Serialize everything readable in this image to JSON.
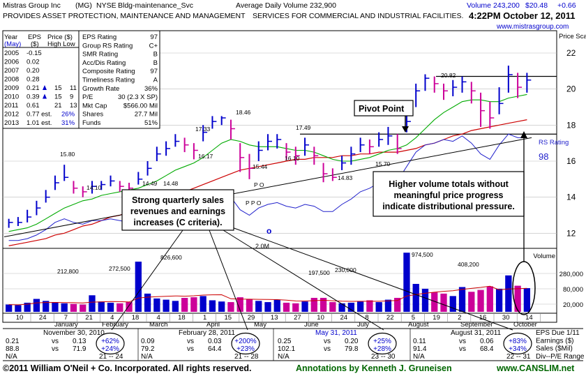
{
  "header": {
    "company": "Mistras Group Inc",
    "ticker": "(MG)",
    "exchange": "NYSE",
    "industry": "Bldg-maintenance_Svc",
    "avg_volume_label": "Average Daily Volume 232,900",
    "description": "PROVIDES ASSET PROTECTION, MAINTENANCE AND MANAGEMENT",
    "description2": "SERVICES FOR COMMERCIAL AND INDUSTRIAL FACILITIES.",
    "volume_quote": "Volume 243,200",
    "price_quote": "$20.48",
    "change": "+0.66",
    "timestamp": "4:22PM October 12, 2011",
    "website": "www.mistrasgroup.com"
  },
  "eps_table": {
    "headers": [
      "Year",
      "EPS",
      "Price ($)"
    ],
    "subheaders": [
      "(May)",
      "($)",
      "High Low"
    ],
    "rows": [
      {
        "year": "2005",
        "eps": "-0.15",
        "high": "",
        "low": "",
        "arrow": false
      },
      {
        "year": "2006",
        "eps": "0.02",
        "high": "",
        "low": "",
        "arrow": false
      },
      {
        "year": "2007",
        "eps": "0.20",
        "high": "",
        "low": "",
        "arrow": false
      },
      {
        "year": "2008",
        "eps": "0.28",
        "high": "",
        "low": "",
        "arrow": false
      },
      {
        "year": "2009",
        "eps": "0.21",
        "high": "15",
        "low": "11",
        "arrow": true
      },
      {
        "year": "2010",
        "eps": "0.39",
        "high": "15",
        "low": "9",
        "arrow": true
      },
      {
        "year": "2011",
        "eps": "0.61",
        "high": "21",
        "low": "13",
        "arrow": false
      },
      {
        "year": "2012",
        "eps": "0.77 est.",
        "high": "26%",
        "low": "",
        "arrow": false
      },
      {
        "year": "2013",
        "eps": "1.01 est.",
        "high": "31%",
        "low": "",
        "arrow": false
      }
    ]
  },
  "ratings": [
    {
      "label": "EPS Rating",
      "value": "97"
    },
    {
      "label": "Group RS Rating",
      "value": "C+"
    },
    {
      "label": "SMR Rating",
      "value": "B"
    },
    {
      "label": "Acc/Dis Rating",
      "value": "B"
    },
    {
      "label": "Composite Rating",
      "value": "97"
    },
    {
      "label": "Timeliness Rating",
      "value": "A"
    },
    {
      "label": "Growth Rate",
      "value": "36%"
    },
    {
      "label": "P/E",
      "value": "30 (2.3 X SP)"
    },
    {
      "label": "Mkt Cap",
      "value": "$566.00 Mil"
    },
    {
      "label": "Shares",
      "value": "27.7 Mil"
    },
    {
      "label": "Funds",
      "value": "51%"
    }
  ],
  "annotations": {
    "pivot": "Pivot Point",
    "volume_note": [
      "Higher volume totals without",
      "meaningful price progress",
      "indicate distributional pressure."
    ],
    "sales_note": [
      "Strong quarterly sales",
      "revenues and earnings",
      "increases (C criteria)."
    ],
    "rs_label": "RS Rating",
    "rs_value": "98",
    "price_scale": "Price Scale",
    "volume_label": "Volume",
    "o_marker": "o",
    "po_marker": "P O",
    "ppo_marker": "P P O",
    "vol_2m": "2.0M"
  },
  "chart_data": {
    "type": "line",
    "title": "",
    "price_axis": {
      "ticks": [
        12,
        14,
        16,
        18,
        20,
        22
      ],
      "ylim": [
        11.2,
        23.2
      ]
    },
    "volume_axis": {
      "ticks": [
        "280,000",
        "80,000",
        "20,000"
      ]
    },
    "week_labels": [
      "10",
      "24",
      "7",
      "21",
      "4",
      "18",
      "4",
      "18",
      "1",
      "15",
      "29",
      "13",
      "27",
      "10",
      "24",
      "8",
      "22",
      "5",
      "19",
      "2",
      "16",
      "30",
      "14"
    ],
    "month_labels": [
      "January",
      "February",
      "March",
      "April",
      "May",
      "June",
      "July",
      "August",
      "September",
      "October"
    ],
    "price_labels": [
      "15.80",
      "14.10",
      "14.49",
      "14.48",
      "17.33",
      "16.17",
      "18.46",
      "15.44",
      "17.49",
      "16.10",
      "14.83",
      "15.70",
      "20.82"
    ],
    "volume_labels": [
      "212,800",
      "272,500",
      "826,600",
      "197,500",
      "230,000",
      "974,500",
      "408,200"
    ],
    "pivot_price": 17.5,
    "base_top_price": 20.82,
    "rs_rating": 98,
    "weeks": 57,
    "close": [
      12.6,
      12.6,
      12.9,
      13.4,
      14.0,
      14.8,
      15.1,
      14.5,
      14.3,
      14.6,
      14.7,
      14.9,
      14.6,
      14.5,
      15.0,
      15.6,
      16.4,
      16.7,
      17.1,
      16.9,
      16.6,
      17.6,
      18.2,
      18.4,
      17.8,
      16.2,
      15.6,
      16.6,
      17.1,
      17.2,
      16.5,
      16.3,
      16.9,
      16.3,
      15.3,
      15.1,
      15.9,
      16.4,
      16.9,
      16.8,
      17.2,
      17.4,
      16.7,
      18.2,
      19.9,
      20.6,
      20.3,
      19.9,
      20.1,
      20.4,
      19.9,
      18.8,
      18.4,
      19.2,
      20.8,
      20.1,
      20.5
    ],
    "high": [
      12.8,
      12.9,
      13.3,
      13.8,
      14.4,
      15.2,
      15.8,
      14.9,
      14.6,
      14.9,
      14.9,
      15.2,
      14.9,
      14.8,
      15.4,
      16.0,
      16.8,
      17.1,
      17.5,
      17.3,
      17.0,
      18.0,
      18.5,
      18.5,
      18.3,
      17.0,
      16.4,
      17.1,
      17.5,
      17.5,
      17.0,
      16.8,
      17.3,
      16.8,
      15.9,
      15.6,
      16.3,
      16.8,
      17.3,
      17.2,
      17.6,
      17.9,
      17.5,
      18.8,
      20.3,
      20.82,
      20.7,
      20.3,
      20.5,
      20.7,
      20.4,
      19.8,
      19.3,
      20.1,
      21.3,
      20.9,
      20.9
    ],
    "low": [
      12.3,
      12.4,
      12.6,
      13.0,
      13.7,
      14.4,
      14.9,
      14.2,
      14.0,
      14.2,
      14.4,
      14.6,
      14.3,
      14.2,
      14.7,
      15.2,
      16.0,
      16.3,
      16.8,
      16.5,
      16.1,
      17.1,
      17.8,
      18.0,
      17.2,
      15.4,
      15.0,
      16.0,
      16.6,
      16.7,
      16.1,
      15.8,
      16.3,
      15.8,
      14.83,
      14.9,
      15.5,
      15.8,
      16.5,
      16.4,
      16.8,
      16.9,
      16.4,
      17.6,
      19.0,
      19.9,
      19.8,
      19.4,
      19.6,
      19.8,
      19.2,
      17.9,
      17.8,
      18.6,
      19.8,
      19.5,
      19.8
    ],
    "ma50": [
      12.1,
      12.2,
      12.3,
      12.5,
      12.8,
      13.1,
      13.4,
      13.6,
      13.8,
      13.9,
      14.1,
      14.2,
      14.3,
      14.4,
      14.5,
      14.7,
      14.9,
      15.2,
      15.5,
      15.7,
      15.9,
      16.2,
      16.6,
      17.0,
      17.2,
      17.1,
      16.9,
      16.8,
      16.8,
      16.8,
      16.7,
      16.6,
      16.6,
      16.5,
      16.3,
      16.1,
      16.0,
      16.0,
      16.1,
      16.2,
      16.4,
      16.6,
      16.7,
      16.9,
      17.3,
      17.8,
      18.3,
      18.7,
      19.0,
      19.3,
      19.4,
      19.4,
      19.3,
      19.3,
      19.5,
      19.6,
      19.7
    ],
    "ma200": [
      11.3,
      11.4,
      11.5,
      11.6,
      11.7,
      11.9,
      12.0,
      12.2,
      12.4,
      12.5,
      12.7,
      12.9,
      13.0,
      13.2,
      13.3,
      13.5,
      13.7,
      13.9,
      14.1,
      14.3,
      14.5,
      14.7,
      14.9,
      15.1,
      15.3,
      15.5,
      15.6,
      15.7,
      15.8,
      15.9,
      16.0,
      16.1,
      16.1,
      16.2,
      16.2,
      16.2,
      16.3,
      16.3,
      16.4,
      16.4,
      16.5,
      16.5,
      16.5,
      16.6,
      16.7,
      16.9,
      17.0,
      17.2,
      17.4,
      17.5,
      17.7,
      17.8,
      17.9,
      18.0,
      18.1,
      18.2,
      18.3
    ],
    "rs_line": [
      11.6,
      11.6,
      11.7,
      11.9,
      12.2,
      12.6,
      12.8,
      12.6,
      12.5,
      12.7,
      12.7,
      12.8,
      12.7,
      12.6,
      12.9,
      13.3,
      13.6,
      13.7,
      13.9,
      13.8,
      13.5,
      13.8,
      14.1,
      14.3,
      14.0,
      13.3,
      13.0,
      13.4,
      13.6,
      13.7,
      13.5,
      13.4,
      13.6,
      13.5,
      13.2,
      13.2,
      13.6,
      13.9,
      14.3,
      14.5,
      14.8,
      15.0,
      14.9,
      15.7,
      16.5,
      16.9,
      17.0,
      17.2,
      17.1,
      17.4,
      17.0,
      16.4,
      16.1,
      16.9,
      17.5,
      17.3,
      17.3
    ],
    "volume": [
      120,
      110,
      150,
      212.8,
      180,
      160,
      140,
      130,
      120,
      272.5,
      170,
      150,
      140,
      160,
      826.6,
      300,
      220,
      200,
      180,
      230,
      240,
      260,
      190,
      170,
      160,
      240,
      210,
      180,
      160,
      197.5,
      150,
      140,
      170,
      230,
      230,
      160,
      140,
      150,
      170,
      190,
      160,
      200,
      230,
      974.5,
      460,
      380,
      320,
      300,
      260,
      408.2,
      330,
      360,
      420,
      380,
      600,
      430,
      390
    ],
    "earnings_quarters": [
      {
        "period": "November 30, 2010",
        "eps": "0.21",
        "eps_prior": "0.13",
        "eps_pct": "+62%",
        "sales": "88.8",
        "sales_prior": "71.9",
        "sales_pct": "+24%",
        "pe": "N/A",
        "pe_range": "21 -- 24"
      },
      {
        "period": "February 28, 2011",
        "eps": "0.09",
        "eps_prior": "0.03",
        "eps_pct": "+200%",
        "sales": "79.2",
        "sales_prior": "64.4",
        "sales_pct": "+23%",
        "pe": "N/A",
        "pe_range": "21 -- 28"
      },
      {
        "period": "May 31, 2011",
        "eps": "0.25",
        "eps_prior": "0.20",
        "eps_pct": "+25%",
        "sales": "102.1",
        "sales_prior": "79.8",
        "sales_pct": "+28%",
        "pe": "N/A",
        "pe_range": "23 -- 30"
      },
      {
        "period": "August 31, 2011",
        "eps": "0.11",
        "eps_prior": "0.06",
        "eps_pct": "+83%",
        "sales": "91.4",
        "sales_prior": "68.4",
        "sales_pct": "+34%",
        "pe": "N/A",
        "pe_range": "22 -- 31"
      }
    ],
    "right_labels": [
      "EPS Due 1/11",
      "Earnings ($)",
      "Sales ($Mil)",
      "Div--P/E Range"
    ]
  },
  "footer": {
    "copyright": "©2011 William O'Neil + Co. Incorporated. All rights reserved.",
    "annotations_by": "Annotations by Kenneth J. Gruneisen",
    "site": "www.CANSLIM.net"
  },
  "colors": {
    "up": "#0000cc",
    "down": "#cc0099",
    "ma50": "#00aa00",
    "ma200": "#cc0000",
    "rs": "#2222cc",
    "annot": "#006600",
    "highlight": "#0000ff"
  }
}
